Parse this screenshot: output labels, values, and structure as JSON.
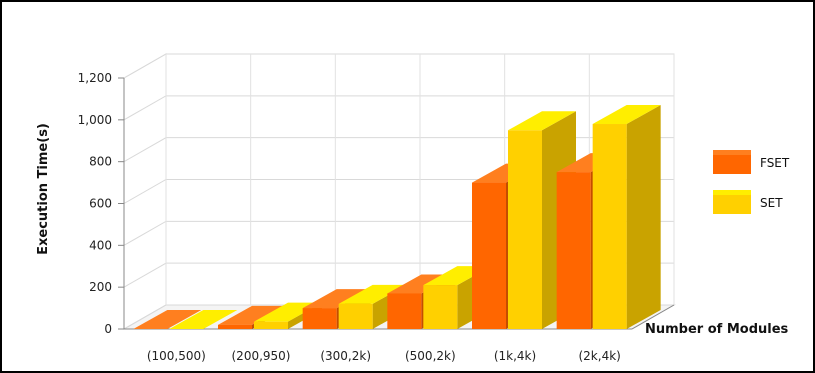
{
  "chart_data": {
    "type": "bar",
    "title": "",
    "xlabel": "Number of Modules",
    "ylabel": "Execution Time(s)",
    "categories": [
      "(100,500)",
      "(200,950)",
      "(300,2k)",
      "(500,2k)",
      "(1k,4k)",
      "(2k,4k)"
    ],
    "series": [
      {
        "name": "FSET",
        "values": [
          0,
          20,
          100,
          170,
          700,
          750
        ]
      },
      {
        "name": "SET",
        "values": [
          0,
          35,
          120,
          210,
          950,
          980
        ]
      }
    ],
    "ylim": [
      0,
      1200
    ],
    "yticks": [
      0,
      200,
      400,
      600,
      800,
      1000,
      1200
    ],
    "grid": true,
    "legend_position": "right",
    "style": "3d",
    "colors": {
      "FSET": {
        "front": "#ff6600",
        "side": "#c44d00",
        "top": "#ff7f1f"
      },
      "SET": {
        "front": "#ffd000",
        "side": "#c9a300",
        "top": "#ffee00"
      }
    }
  }
}
